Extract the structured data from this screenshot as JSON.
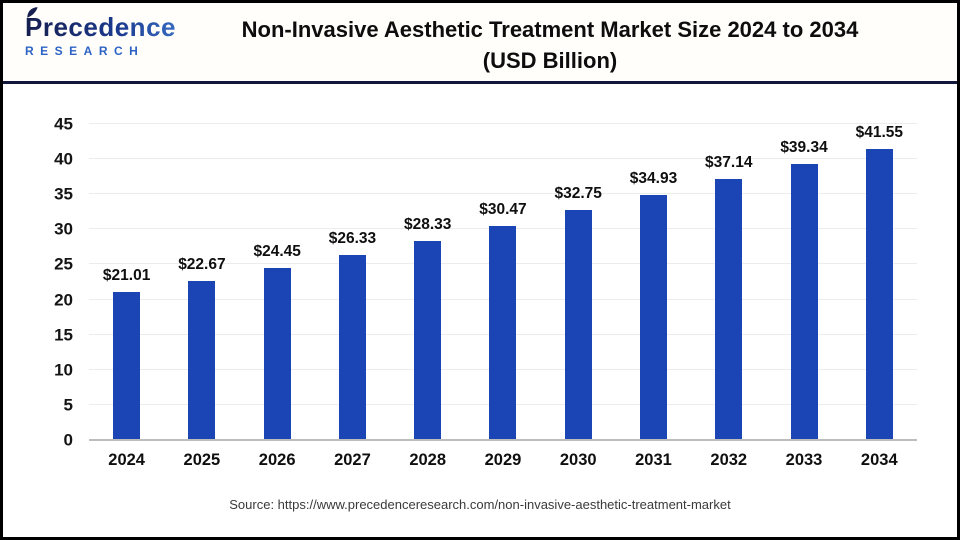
{
  "header": {
    "logo_primary": "Precedence",
    "logo_secondary": "RESEARCH",
    "title_line1": "Non-Invasive Aesthetic Treatment Market Size 2024 to 2034",
    "title_line2": "(USD Billion)"
  },
  "chart_data": {
    "type": "bar",
    "title": "Non-Invasive Aesthetic Treatment Market Size 2024 to 2034 (USD Billion)",
    "categories": [
      "2024",
      "2025",
      "2026",
      "2027",
      "2028",
      "2029",
      "2030",
      "2031",
      "2032",
      "2033",
      "2034"
    ],
    "values": [
      21.01,
      22.67,
      24.45,
      26.33,
      28.33,
      30.47,
      32.75,
      34.93,
      37.14,
      39.34,
      41.55
    ],
    "value_labels": [
      "$21.01",
      "$22.67",
      "$24.45",
      "$26.33",
      "$28.33",
      "$30.47",
      "$32.75",
      "$34.93",
      "$37.14",
      "$39.34",
      "$41.55"
    ],
    "xlabel": "",
    "ylabel": "",
    "ylim": [
      0,
      45
    ],
    "yticks": [
      0,
      5,
      10,
      15,
      20,
      25,
      30,
      35,
      40,
      45
    ],
    "grid": "horizontal",
    "legend": "none",
    "bar_color": "#1b44b5"
  },
  "colors": {
    "bar": "#1b44b5",
    "header_rule": "#11173a",
    "gridline": "#ececec",
    "axis_line": "#bdbdbd",
    "logo_navy": "#161f4e",
    "logo_blue": "#2e63c6"
  },
  "footer": {
    "source": "Source: https://www.precedenceresearch.com/non-invasive-aesthetic-treatment-market"
  }
}
